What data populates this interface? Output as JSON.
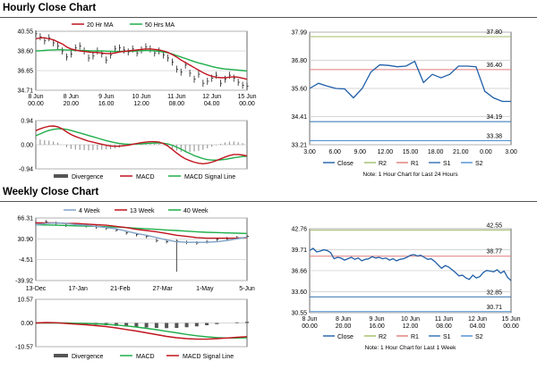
{
  "colors": {
    "red": "#c0141e",
    "green": "#1fae4a",
    "blue": "#1f5fa8",
    "gray": "#8a8a8a",
    "grid": "#c8c8c8",
    "r2": "#9fbd6a",
    "r1": "#e07a7a",
    "s1": "#2f6fb0",
    "s2": "#4c8fd0",
    "dark": "#222222",
    "lightblue": "#7fa3c8"
  },
  "hourly": {
    "title": "Hourly Close Chart",
    "price": {
      "legend": [
        "20 Hr MA",
        "50 Hrs MA"
      ],
      "ylim": [
        34.71,
        40.55
      ],
      "yticks": [
        "40.55",
        "38.60",
        "36.65",
        "34.71"
      ],
      "ytick_values": [
        40.55,
        38.6,
        36.65,
        34.71
      ],
      "xticks": [
        [
          "8 Jun",
          "00.00"
        ],
        [
          "8 Jun",
          "20.00"
        ],
        [
          "9 Jun",
          "16.00"
        ],
        [
          "10 Jun",
          "12.00"
        ],
        [
          "11 Jun",
          "08.00"
        ],
        [
          "12 Jun",
          "04.00"
        ],
        [
          "15 Jun",
          "00.00"
        ]
      ],
      "close": [
        40.3,
        40.0,
        39.6,
        39.9,
        39.4,
        39.1,
        38.6,
        38.0,
        38.3,
        38.9,
        39.1,
        38.6,
        37.9,
        38.1,
        38.6,
        38.3,
        37.7,
        38.2,
        38.8,
        38.9,
        38.7,
        38.5,
        38.8,
        38.4,
        38.7,
        39.0,
        38.8,
        38.4,
        38.6,
        38.2,
        37.9,
        37.5,
        36.8,
        36.5,
        37.2,
        36.4,
        35.8,
        36.3,
        35.4,
        35.6,
        35.9,
        36.2,
        35.4,
        35.8,
        36.2,
        35.9,
        35.5,
        35.2,
        35.1
      ],
      "ma20": [
        39.8,
        39.9,
        39.9,
        39.8,
        39.7,
        39.5,
        39.3,
        39.0,
        38.8,
        38.7,
        38.6,
        38.55,
        38.5,
        38.45,
        38.45,
        38.4,
        38.35,
        38.35,
        38.4,
        38.5,
        38.55,
        38.6,
        38.65,
        38.7,
        38.75,
        38.8,
        38.8,
        38.75,
        38.7,
        38.6,
        38.45,
        38.25,
        38.0,
        37.7,
        37.45,
        37.2,
        36.95,
        36.7,
        36.45,
        36.25,
        36.1,
        36.0,
        35.95,
        35.95,
        36.0,
        36.05,
        36.0,
        35.9,
        35.8
      ],
      "ma50": [
        38.6,
        38.62,
        38.65,
        38.68,
        38.7,
        38.72,
        38.72,
        38.7,
        38.68,
        38.66,
        38.65,
        38.64,
        38.62,
        38.6,
        38.6,
        38.6,
        38.58,
        38.56,
        38.55,
        38.55,
        38.56,
        38.57,
        38.58,
        38.6,
        38.62,
        38.64,
        38.64,
        38.6,
        38.56,
        38.5,
        38.42,
        38.3,
        38.15,
        38.0,
        37.85,
        37.7,
        37.55,
        37.42,
        37.3,
        37.18,
        37.06,
        36.96,
        36.88,
        36.82,
        36.78,
        36.74,
        36.7,
        36.66,
        36.62
      ]
    },
    "macd": {
      "legend": [
        "Divergence",
        "MACD",
        "MACD Signal Line"
      ],
      "ylim": [
        -0.94,
        0.94
      ],
      "yticks": [
        "0.94",
        "0.00",
        "-0.94"
      ],
      "ytick_values": [
        0.94,
        0.0,
        -0.94
      ],
      "macd": [
        0.55,
        0.62,
        0.68,
        0.72,
        0.73,
        0.7,
        0.62,
        0.5,
        0.4,
        0.32,
        0.26,
        0.2,
        0.14,
        0.1,
        0.06,
        0.02,
        -0.02,
        -0.05,
        -0.06,
        -0.06,
        -0.04,
        -0.02,
        0.02,
        0.05,
        0.08,
        0.1,
        0.12,
        0.12,
        0.1,
        0.05,
        -0.05,
        -0.18,
        -0.32,
        -0.45,
        -0.55,
        -0.62,
        -0.68,
        -0.72,
        -0.74,
        -0.72,
        -0.68,
        -0.62,
        -0.55,
        -0.48,
        -0.42,
        -0.38,
        -0.38,
        -0.4,
        -0.44
      ],
      "signal": [
        0.35,
        0.42,
        0.5,
        0.56,
        0.6,
        0.62,
        0.62,
        0.6,
        0.56,
        0.51,
        0.46,
        0.41,
        0.36,
        0.31,
        0.26,
        0.21,
        0.16,
        0.12,
        0.08,
        0.05,
        0.03,
        0.02,
        0.02,
        0.03,
        0.04,
        0.05,
        0.06,
        0.07,
        0.07,
        0.06,
        0.03,
        -0.02,
        -0.09,
        -0.17,
        -0.26,
        -0.34,
        -0.42,
        -0.48,
        -0.54,
        -0.58,
        -0.6,
        -0.6,
        -0.59,
        -0.57,
        -0.54,
        -0.51,
        -0.48,
        -0.46,
        -0.45
      ]
    },
    "pivot": {
      "ylim": [
        33.21,
        37.99
      ],
      "yticks": [
        "37.99",
        "36.80",
        "35.60",
        "34.41",
        "33.21"
      ],
      "ytick_values": [
        37.99,
        36.8,
        35.6,
        34.41,
        33.21
      ],
      "levels": [
        {
          "name": "R2",
          "value": 37.8,
          "label": "37.80"
        },
        {
          "name": "R1",
          "value": 36.4,
          "label": "36.40"
        },
        {
          "name": "S1",
          "value": 34.19,
          "label": "34.19"
        },
        {
          "name": "S2",
          "value": 33.38,
          "label": "33.38"
        }
      ],
      "xticks": [
        "3.00",
        "6.00",
        "9.00",
        "12.00",
        "15.00",
        "18.00",
        "21.00",
        "0.00",
        "3.00"
      ],
      "close": [
        35.6,
        35.82,
        35.7,
        35.6,
        35.58,
        35.2,
        35.6,
        36.3,
        36.6,
        36.58,
        36.52,
        36.55,
        36.75,
        35.85,
        36.2,
        36.05,
        36.2,
        36.55,
        36.55,
        36.52,
        35.48,
        35.2,
        35.05,
        35.05
      ],
      "legend": [
        "Close",
        "R2",
        "R1",
        "S1",
        "S2"
      ],
      "note": "Note: 1 Hour Chart for Last 24 Hours"
    }
  },
  "weekly": {
    "title": "Weekly Close Chart",
    "price": {
      "legend": [
        "4 Week",
        "13 Week",
        "40 Week"
      ],
      "ylim": [
        -39.92,
        66.31
      ],
      "yticks": [
        "66.31",
        "30.90",
        "-4.51",
        "-39.92"
      ],
      "ytick_values": [
        66.31,
        30.9,
        -4.51,
        -39.92
      ],
      "xticks": [
        "13-Dec",
        "17-Jan",
        "21-Feb",
        "27-Mar",
        "1-May",
        "5-Jun"
      ],
      "close": [
        58,
        60,
        57,
        54,
        55,
        53,
        51,
        49,
        46,
        41,
        38,
        35,
        28,
        26,
        27,
        25,
        24,
        26,
        30,
        31,
        33,
        35
      ],
      "w4": [
        55.0,
        57.0,
        58.0,
        57.0,
        55.0,
        54.0,
        52.0,
        50.0,
        48.0,
        44.0,
        40.0,
        37.0,
        33.0,
        29.0,
        26.0,
        25.0,
        25.0,
        25.0,
        26.0,
        28.0,
        31.0,
        34.0
      ],
      "w13": [
        58.0,
        58.0,
        58.0,
        57.0,
        57.0,
        56.0,
        55.0,
        54.0,
        52.0,
        50.0,
        47.0,
        45.0,
        43.0,
        40.0,
        37.0,
        35.0,
        33.0,
        32.0,
        32.0,
        32.0,
        32.0,
        33.0
      ],
      "w40": [
        55.0,
        54.5,
        54.0,
        53.5,
        53.0,
        52.5,
        52.0,
        51.5,
        51.0,
        50.0,
        49.0,
        48.0,
        47.0,
        46.0,
        45.0,
        44.0,
        43.0,
        42.0,
        41.5,
        41.0,
        40.5,
        40.0
      ],
      "spike_low": -25
    },
    "macd": {
      "legend": [
        "Divergence",
        "MACD",
        "MACD Signal Line"
      ],
      "ylim": [
        -10.57,
        10.57
      ],
      "yticks": [
        "10.57",
        "0.00",
        "-10.57"
      ],
      "ytick_values": [
        10.57,
        0.0,
        -10.57
      ],
      "macd": [
        0.0,
        0.2,
        0.1,
        -0.2,
        -0.5,
        -0.8,
        -1.2,
        -1.6,
        -2.2,
        -2.9,
        -3.6,
        -4.4,
        -5.2,
        -6.0,
        -6.6,
        -7.0,
        -7.2,
        -7.2,
        -7.0,
        -6.7,
        -6.4,
        -6.1
      ],
      "signal": [
        0.0,
        0.0,
        0.0,
        0.0,
        -0.1,
        -0.2,
        -0.4,
        -0.6,
        -0.9,
        -1.3,
        -1.8,
        -2.4,
        -3.0,
        -3.7,
        -4.4,
        -5.1,
        -5.7,
        -6.2,
        -6.5,
        -6.7,
        -6.7,
        -6.6
      ],
      "divergence": [
        0.0,
        0.2,
        0.1,
        -0.2,
        -0.4,
        -0.6,
        -0.8,
        -1.0,
        -1.3,
        -1.6,
        -1.8,
        -2.0,
        -2.2,
        -2.3,
        -2.2,
        -1.9,
        -1.5,
        -1.0,
        -0.5,
        0.0,
        0.3,
        0.5
      ]
    },
    "pivot": {
      "ylim": [
        30.55,
        42.76
      ],
      "yticks": [
        "42.76",
        "39.71",
        "36.66",
        "33.60",
        "30.55"
      ],
      "ytick_values": [
        42.76,
        39.71,
        36.66,
        33.6,
        30.55
      ],
      "levels": [
        {
          "name": "R2",
          "value": 42.55,
          "label": "42.55"
        },
        {
          "name": "R1",
          "value": 38.77,
          "label": "38.77"
        },
        {
          "name": "S1",
          "value": 32.85,
          "label": "32.85"
        },
        {
          "name": "S2",
          "value": 30.71,
          "label": "30.71"
        }
      ],
      "xticks": [
        [
          "8 Jun",
          "00.00"
        ],
        [
          "8 Jun",
          "20.00"
        ],
        [
          "9 Jun",
          "16.00"
        ],
        [
          "10 Jun",
          "12.00"
        ],
        [
          "11 Jun",
          "08.00"
        ],
        [
          "12 Jun",
          "04.00"
        ],
        [
          "15 Jun",
          "00.00"
        ]
      ],
      "close": [
        39.6,
        39.9,
        39.4,
        39.5,
        39.7,
        39.6,
        39.3,
        38.4,
        38.6,
        38.5,
        38.2,
        38.4,
        38.6,
        38.3,
        38.5,
        38.1,
        38.3,
        38.4,
        38.7,
        38.5,
        38.6,
        38.4,
        38.5,
        38.2,
        38.4,
        38.1,
        38.3,
        38.4,
        38.6,
        38.9,
        39.0,
        38.8,
        38.9,
        38.6,
        38.3,
        38.4,
        38.0,
        37.5,
        37.0,
        37.4,
        37.2,
        36.8,
        36.4,
        35.9,
        36.0,
        35.6,
        35.4,
        36.0,
        35.6,
        35.8,
        36.4,
        36.7,
        36.6,
        36.5,
        36.8,
        36.3,
        36.6,
        35.7,
        35.2
      ],
      "legend": [
        "Close",
        "R2",
        "R1",
        "S1",
        "S2"
      ],
      "note": "Note: 1 Hour Chart for Last 1 Week"
    }
  }
}
